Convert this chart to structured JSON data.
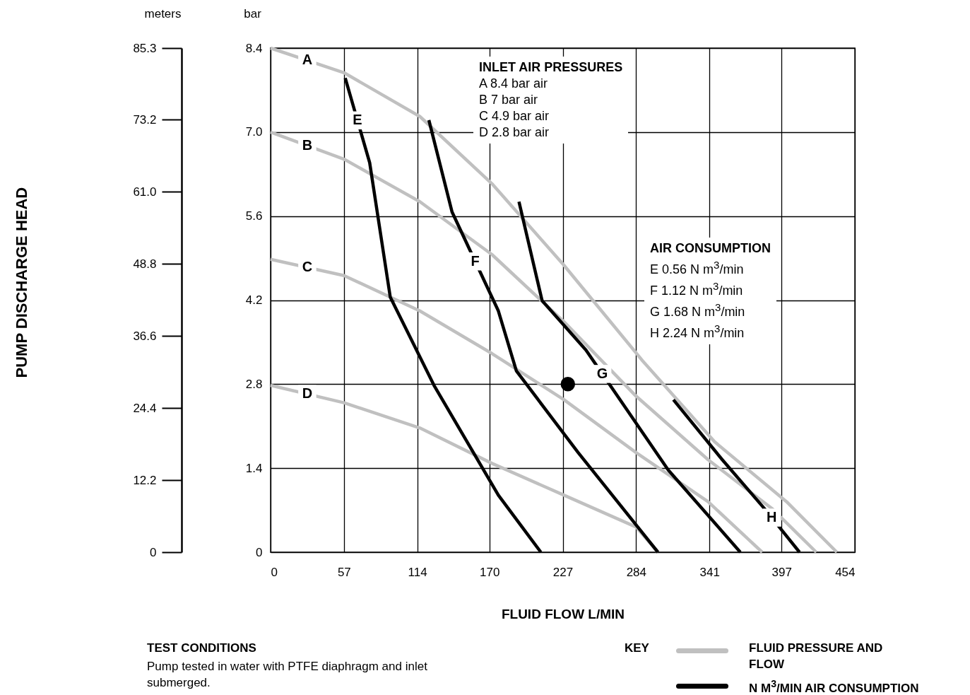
{
  "chart_data": {
    "type": "line",
    "ylabel": "bar",
    "y2label": "meters",
    "xlabel": "FLUID FLOW L/MIN",
    "xlim": [
      0,
      454
    ],
    "xticks": [
      0,
      57,
      114,
      170,
      227,
      284,
      341,
      397,
      454
    ],
    "ylim": [
      0,
      8.4
    ],
    "yticks": [
      0,
      1.4,
      2.8,
      4.2,
      5.6,
      {
        "value": 7,
        "label": "7.0"
      },
      8.4
    ],
    "y2lim": [
      0,
      85.3
    ],
    "y2ticks": [
      0,
      12.2,
      24.4,
      36.6,
      48.8,
      {
        "value": 61,
        "label": "61.0"
      },
      73.2,
      85.3
    ],
    "grid": true,
    "marker": "none",
    "line_style": "solid",
    "series": [
      {
        "name": "A",
        "color": "#c0c0c0",
        "x": [
          0,
          57,
          116,
          172,
          228,
          289,
          345,
          401,
          440
        ],
        "values": [
          8.4,
          7.99,
          7.26,
          6.14,
          4.78,
          3.19,
          1.84,
          0.84,
          0
        ]
      },
      {
        "name": "B",
        "color": "#c0c0c0",
        "x": [
          0,
          57,
          116,
          172,
          228,
          284,
          340,
          390,
          424
        ],
        "values": [
          7.0,
          6.55,
          5.84,
          4.96,
          3.84,
          2.6,
          1.54,
          0.72,
          0
        ]
      },
      {
        "name": "C",
        "color": "#c0c0c0",
        "x": [
          0,
          57,
          116,
          172,
          228,
          284,
          340,
          382
        ],
        "values": [
          4.88,
          4.61,
          4.02,
          3.31,
          2.54,
          1.66,
          0.84,
          0
        ]
      },
      {
        "name": "D",
        "color": "#c0c0c0",
        "x": [
          0,
          57,
          116,
          172,
          228,
          284,
          301
        ],
        "values": [
          2.78,
          2.49,
          2.07,
          1.48,
          0.95,
          0.42,
          0
        ]
      },
      {
        "name": "E",
        "color": "#000000",
        "x": [
          58,
          77,
          93,
          127,
          177,
          210
        ],
        "values": [
          7.9,
          6.49,
          4.25,
          2.78,
          0.95,
          0
        ]
      },
      {
        "name": "F",
        "color": "#000000",
        "x": [
          123,
          141,
          177,
          191,
          239,
          301
        ],
        "values": [
          7.2,
          5.67,
          4.02,
          3.02,
          1.66,
          0
        ]
      },
      {
        "name": "G",
        "color": "#000000",
        "x": [
          193,
          211,
          245,
          309,
          365
        ],
        "values": [
          5.84,
          4.19,
          3.37,
          1.37,
          0
        ]
      },
      {
        "name": "H",
        "color": "#000000",
        "x": [
          313,
          351,
          384,
          411
        ],
        "values": [
          2.54,
          1.54,
          0.72,
          0
        ]
      },
      {
        "type": "scatter",
        "marker": "circle",
        "color": "#000000",
        "x": [
          231
        ],
        "values": [
          2.8
        ]
      }
    ],
    "annotations": [
      "INLET AIR PRESSURES",
      "A 8.4 bar air",
      "B 7 bar air",
      "C 4.9 bar air",
      "D 2.8 bar air",
      "AIR CONSUMPTION",
      "E 0.56 N m$^{3}$/min",
      "F 1.12 N m$^{3}$/min",
      "G 1.68 N m$^{3}$/min",
      "H 2.24 N m$^{3}$/min",
      "PUMP DISCHARGE HEAD",
      "TEST CONDITIONS",
      "Pump tested in water with PTFE diaphragm and inlet submerged.",
      "KEY",
      "FLUID PRESSURE AND FLOW",
      "N M$^{3}$/MIN AIR CONSUMPTION"
    ]
  }
}
